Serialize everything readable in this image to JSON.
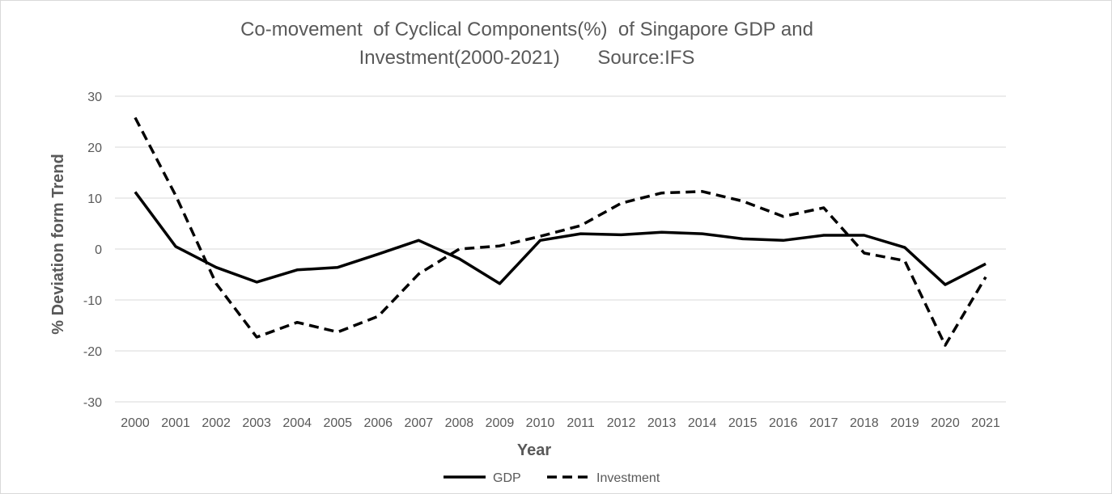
{
  "chart_data": {
    "type": "line",
    "title_line1": "Co-movement  of Cyclical Components(%)  of Singapore GDP and",
    "title_line2": "Investment(2000-2021)       Source:IFS",
    "xlabel": "Year",
    "ylabel": "% Deviation form Trend",
    "ylim": [
      -30,
      30
    ],
    "yticks": [
      30,
      20,
      10,
      0,
      -10,
      -20,
      -30
    ],
    "categories": [
      "2000",
      "2001",
      "2002",
      "2003",
      "2004",
      "2005",
      "2006",
      "2007",
      "2008",
      "2009",
      "2010",
      "2011",
      "2012",
      "2013",
      "2014",
      "2015",
      "2016",
      "2017",
      "2018",
      "2019",
      "2020",
      "2021"
    ],
    "series": [
      {
        "name": "GDP",
        "style": "solid",
        "color": "#000000",
        "values": [
          11.2,
          0.5,
          -3.6,
          -6.5,
          -4.1,
          -3.6,
          -1.0,
          1.7,
          -1.9,
          -6.8,
          1.7,
          3.0,
          2.8,
          3.3,
          3.0,
          2.0,
          1.7,
          2.7,
          2.7,
          0.3,
          -7.0,
          -2.9
        ]
      },
      {
        "name": "Investment",
        "style": "dashed",
        "color": "#000000",
        "values": [
          25.8,
          10.5,
          -6.8,
          -17.3,
          -14.4,
          -16.3,
          -13.2,
          -4.9,
          0.0,
          0.6,
          2.5,
          4.6,
          9.0,
          11.0,
          11.3,
          9.4,
          6.4,
          8.1,
          -0.8,
          -2.3,
          -18.9,
          -5.5
        ]
      }
    ],
    "grid": true,
    "legend_position": "bottom"
  }
}
